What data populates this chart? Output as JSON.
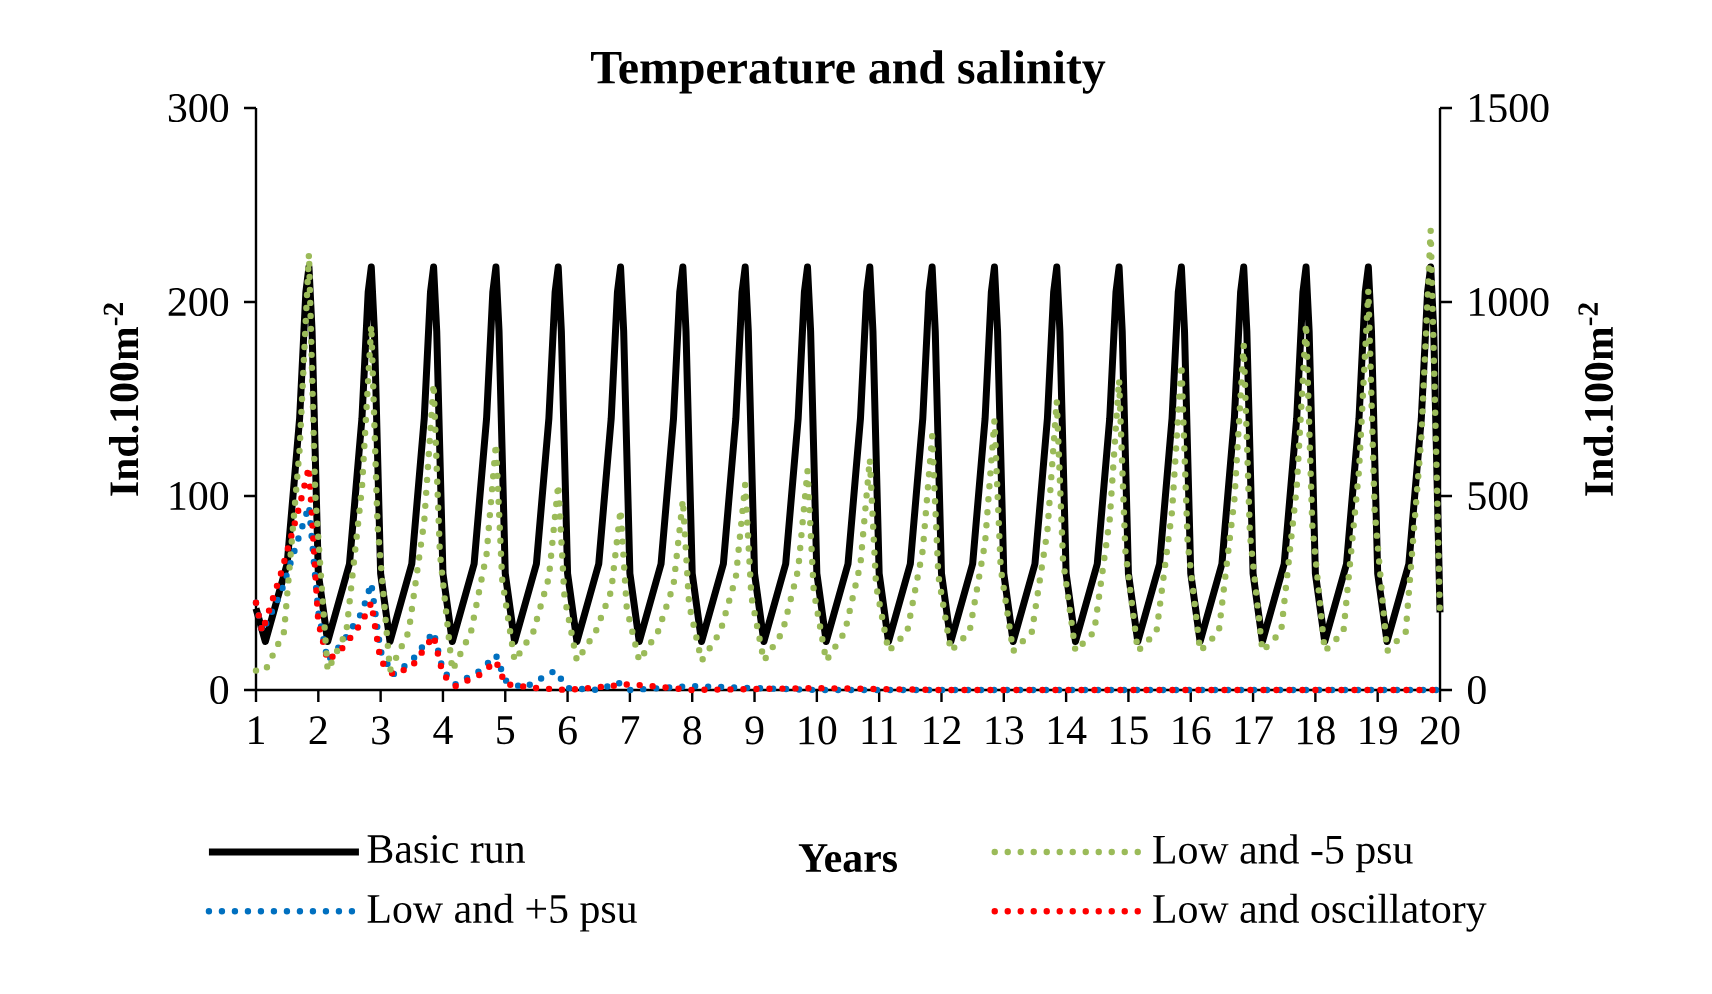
{
  "chart_data": {
    "type": "line",
    "title": "Temperature and salinity",
    "xlabel": "Years",
    "ylabel": "Ind.100m$^{-2}$",
    "y2label": "Ind.100m$^{-2}$",
    "xlim": [
      1,
      20
    ],
    "xticks": [
      1,
      2,
      3,
      4,
      5,
      6,
      7,
      8,
      9,
      10,
      11,
      12,
      13,
      14,
      15,
      16,
      17,
      18,
      19,
      20
    ],
    "ylim": [
      0,
      300
    ],
    "yticks": [
      0,
      100,
      200,
      300
    ],
    "y2lim": [
      0,
      1500
    ],
    "y2ticks": [
      0,
      500,
      1000,
      1500
    ],
    "grid": false,
    "legend": "bottom",
    "series": [
      {
        "name": "Basic run",
        "color": "#000000",
        "line_style": "solid",
        "x": [
          1,
          1.15,
          1.5,
          1.7,
          1.8,
          1.85,
          1.9,
          2,
          2.15,
          2.5,
          2.7,
          2.8,
          2.85,
          2.9,
          3,
          3.15,
          3.5,
          3.7,
          3.8,
          3.85,
          3.9,
          4,
          4.15,
          4.5,
          4.7,
          4.8,
          4.85,
          4.9,
          5,
          5.15,
          5.5,
          5.7,
          5.8,
          5.85,
          5.9,
          6,
          6.15,
          6.5,
          6.7,
          6.8,
          6.85,
          6.9,
          7,
          7.15,
          7.5,
          7.7,
          7.8,
          7.85,
          7.9,
          8,
          8.15,
          8.5,
          8.7,
          8.8,
          8.85,
          8.9,
          9,
          9.15,
          9.5,
          9.7,
          9.8,
          9.85,
          9.9,
          10,
          10.15,
          10.5,
          10.7,
          10.8,
          10.85,
          10.9,
          11,
          11.15,
          11.5,
          11.7,
          11.8,
          11.85,
          11.9,
          12,
          12.15,
          12.5,
          12.7,
          12.8,
          12.85,
          12.9,
          13,
          13.15,
          13.5,
          13.7,
          13.8,
          13.85,
          13.9,
          14,
          14.15,
          14.5,
          14.7,
          14.8,
          14.85,
          14.9,
          15,
          15.15,
          15.5,
          15.7,
          15.8,
          15.85,
          15.9,
          16,
          16.15,
          16.5,
          16.7,
          16.8,
          16.85,
          16.9,
          17,
          17.15,
          17.5,
          17.7,
          17.8,
          17.85,
          17.9,
          18,
          18.15,
          18.5,
          18.7,
          18.8,
          18.85,
          18.9,
          19,
          19.15,
          19.5,
          19.7,
          19.8,
          19.85,
          19.9,
          20
        ],
        "values": [
          42,
          25,
          65,
          140,
          205,
          218,
          185,
          60,
          25,
          65,
          140,
          205,
          218,
          185,
          60,
          25,
          65,
          140,
          205,
          218,
          185,
          60,
          25,
          65,
          140,
          205,
          218,
          185,
          60,
          25,
          65,
          140,
          205,
          218,
          185,
          60,
          25,
          65,
          140,
          205,
          218,
          185,
          60,
          25,
          65,
          140,
          205,
          218,
          185,
          60,
          25,
          65,
          140,
          205,
          218,
          185,
          60,
          25,
          65,
          140,
          205,
          218,
          185,
          60,
          25,
          65,
          140,
          205,
          218,
          185,
          60,
          25,
          65,
          140,
          205,
          218,
          185,
          60,
          25,
          65,
          140,
          205,
          218,
          185,
          60,
          25,
          65,
          140,
          205,
          218,
          185,
          60,
          25,
          65,
          140,
          205,
          218,
          185,
          60,
          25,
          65,
          140,
          205,
          218,
          185,
          60,
          25,
          65,
          140,
          205,
          218,
          185,
          60,
          25,
          65,
          140,
          205,
          218,
          185,
          60,
          25,
          65,
          140,
          205,
          218,
          185,
          60,
          25,
          65,
          140,
          205,
          218,
          185,
          40
        ]
      },
      {
        "name": "Low and -5 psu",
        "color": "#9bbb59",
        "line_style": "dotted",
        "axis": "y2",
        "x": [
          1,
          1.15,
          1.45,
          1.7,
          1.85,
          1.95,
          2.15,
          2.45,
          2.7,
          2.85,
          2.95,
          3.15,
          3.45,
          3.7,
          3.85,
          3.95,
          4.15,
          4.45,
          4.7,
          4.85,
          4.95,
          5.15,
          5.45,
          5.7,
          5.85,
          5.95,
          6.15,
          6.45,
          6.7,
          6.85,
          6.95,
          7.15,
          7.45,
          7.7,
          7.85,
          7.95,
          8.15,
          8.45,
          8.7,
          8.85,
          8.95,
          9.15,
          9.45,
          9.7,
          9.85,
          9.95,
          10.15,
          10.45,
          10.7,
          10.85,
          10.95,
          11.15,
          11.45,
          11.7,
          11.85,
          11.95,
          12.15,
          12.45,
          12.7,
          12.85,
          12.95,
          13.15,
          13.45,
          13.7,
          13.85,
          13.95,
          14.15,
          14.45,
          14.7,
          14.85,
          14.95,
          15.15,
          15.45,
          15.7,
          15.85,
          15.95,
          16.15,
          16.45,
          16.7,
          16.85,
          16.95,
          17.15,
          17.45,
          17.7,
          17.85,
          17.95,
          18.15,
          18.45,
          18.7,
          18.85,
          18.95,
          19.15,
          19.45,
          19.7,
          19.85,
          19.95,
          20
        ],
        "values": [
          50,
          50,
          150,
          620,
          1125,
          505,
          50,
          150,
          520,
          940,
          425,
          50,
          150,
          435,
          790,
          355,
          50,
          150,
          350,
          635,
          285,
          75,
          150,
          290,
          530,
          240,
          75,
          150,
          255,
          465,
          210,
          75,
          150,
          270,
          490,
          220,
          75,
          150,
          290,
          530,
          240,
          75,
          150,
          310,
          565,
          255,
          75,
          150,
          325,
          595,
          270,
          100,
          150,
          360,
          655,
          295,
          100,
          150,
          380,
          695,
          315,
          100,
          150,
          410,
          745,
          335,
          100,
          150,
          440,
          800,
          360,
          100,
          150,
          460,
          840,
          380,
          100,
          150,
          490,
          890,
          400,
          100,
          150,
          520,
          945,
          425,
          100,
          150,
          565,
          1030,
          465,
          100,
          150,
          650,
          1185,
          535,
          180
        ]
      },
      {
        "name": "Low and +5 psu",
        "color": "#0070c0",
        "line_style": "dotted",
        "x": [
          1,
          1.1,
          1.4,
          1.7,
          1.85,
          2.0,
          2.15,
          2.4,
          2.7,
          2.85,
          3.0,
          3.2,
          3.5,
          3.85,
          4.0,
          4.2,
          4.6,
          4.85,
          5.0,
          5.3,
          5.8,
          6.0,
          6.5,
          6.8,
          7.0,
          8,
          10,
          12,
          14,
          16,
          18,
          20
        ],
        "values": [
          45,
          30,
          50,
          80,
          95,
          40,
          15,
          25,
          40,
          55,
          20,
          8,
          15,
          30,
          10,
          3,
          10,
          18,
          5,
          1,
          10,
          1,
          0,
          4,
          0,
          2,
          0,
          0,
          0,
          0,
          0,
          0
        ]
      },
      {
        "name": "Low and oscillatory",
        "color": "#ff0000",
        "line_style": "dotted",
        "x": [
          1,
          1.1,
          1.4,
          1.7,
          1.85,
          2.0,
          2.15,
          2.4,
          2.7,
          2.85,
          3.0,
          3.2,
          3.5,
          3.85,
          4.0,
          4.2,
          4.6,
          4.85,
          5.0,
          5.5,
          6,
          7,
          8,
          10,
          12,
          14,
          16,
          18,
          20
        ],
        "values": [
          45,
          30,
          60,
          95,
          115,
          35,
          15,
          22,
          35,
          45,
          15,
          8,
          12,
          28,
          8,
          2,
          8,
          15,
          3,
          1,
          0,
          3,
          0,
          1,
          0,
          0,
          0,
          0,
          0
        ]
      }
    ]
  }
}
